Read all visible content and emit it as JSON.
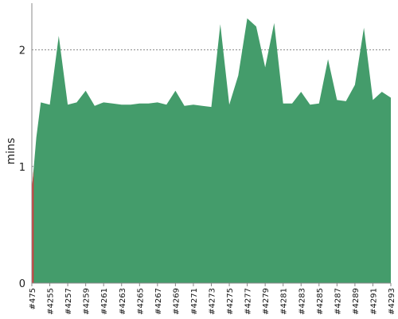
{
  "chart_data": {
    "type": "area",
    "title": "",
    "xlabel": "",
    "ylabel": "mins",
    "ylim": [
      0,
      2.4
    ],
    "yticks": [
      0,
      1,
      2
    ],
    "grid": "horizontal-dashed",
    "legend": "none",
    "colors": {
      "fill": "#449c6b",
      "highlight": "#d63a3a",
      "grid": "#666666"
    },
    "x_tick_labels": [
      "#475",
      "#4255",
      "#4257",
      "#4259",
      "#4261",
      "#4263",
      "#4265",
      "#4267",
      "#4269",
      "#4271",
      "#4273",
      "#4275",
      "#4277",
      "#4279",
      "#4281",
      "#4283",
      "#4285",
      "#4287",
      "#4289",
      "#4291",
      "#4293"
    ],
    "x_tick_positions": [
      0,
      2,
      4,
      6,
      8,
      10,
      12,
      14,
      16,
      18,
      20,
      22,
      24,
      26,
      28,
      30,
      32,
      34,
      36,
      38,
      40
    ],
    "highlight_range": [
      0,
      0.2
    ],
    "series": [
      {
        "x": [
          0,
          0.5,
          1,
          2,
          3,
          4,
          5,
          6,
          7,
          8,
          9,
          10,
          11,
          12,
          13,
          14,
          15,
          16,
          17,
          18,
          19,
          20,
          21,
          22,
          23,
          24,
          25,
          26,
          27,
          28,
          29,
          30,
          31,
          32,
          33,
          34,
          35,
          36,
          37,
          38,
          39,
          40
        ],
        "values": [
          0.8,
          1.25,
          1.55,
          1.53,
          2.12,
          1.53,
          1.55,
          1.65,
          1.52,
          1.55,
          1.54,
          1.53,
          1.53,
          1.54,
          1.54,
          1.55,
          1.53,
          1.65,
          1.52,
          1.53,
          1.52,
          1.51,
          2.22,
          1.53,
          1.78,
          2.27,
          2.2,
          1.85,
          2.23,
          1.54,
          1.54,
          1.64,
          1.53,
          1.54,
          1.92,
          1.57,
          1.56,
          1.7,
          2.19,
          1.57,
          1.64,
          1.59
        ]
      }
    ]
  }
}
